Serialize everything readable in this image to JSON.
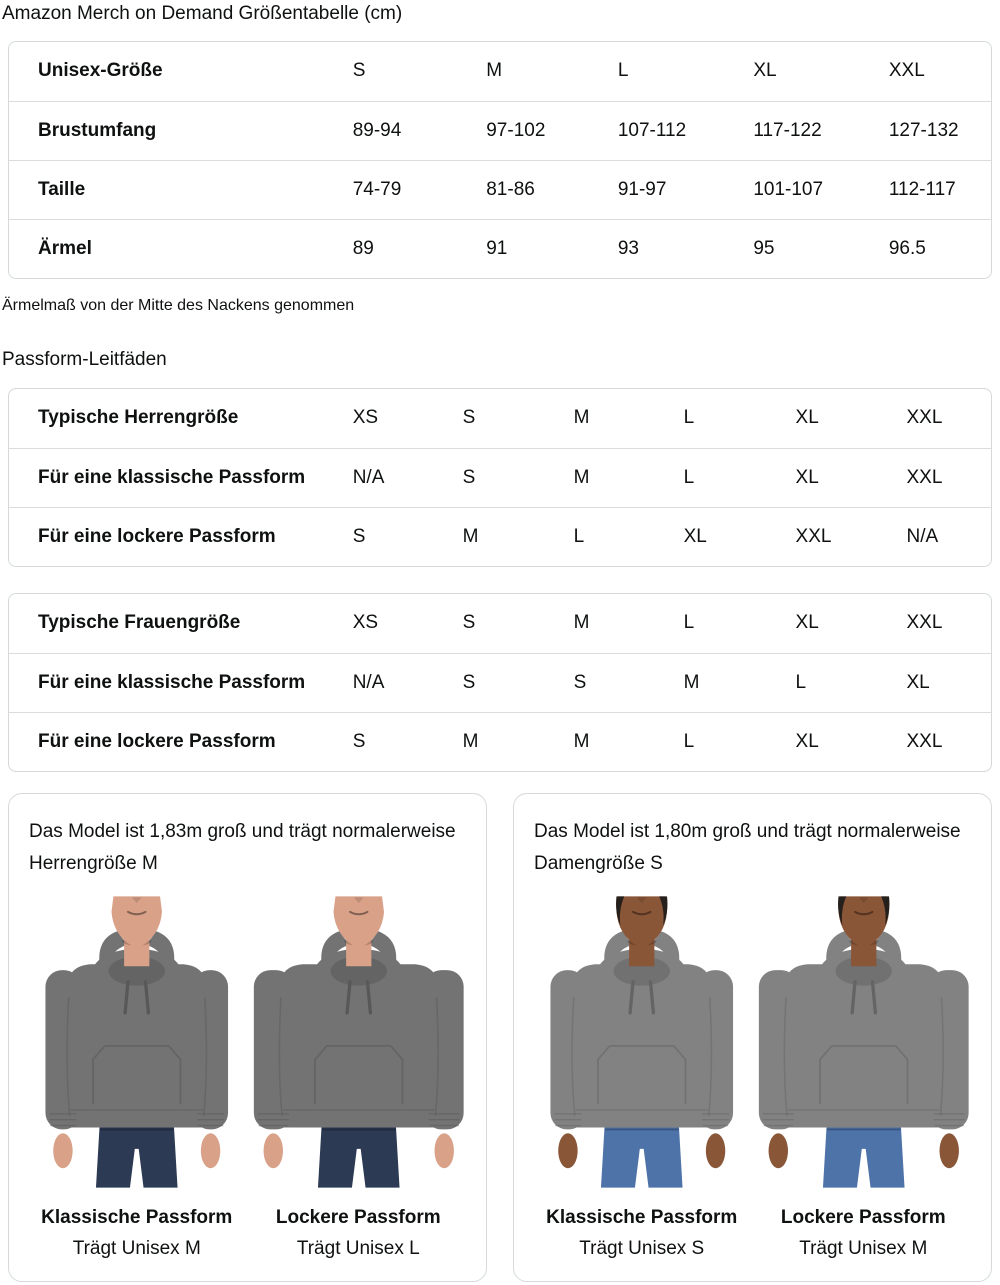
{
  "page": {
    "title": "Amazon Merch on Demand Größentabelle (cm)",
    "note": "Ärmelmaß von der Mitte des Nackens genommen",
    "fit_heading": "Passform-Leitfäden"
  },
  "ui_colors": {
    "text": "#0f1111",
    "table_border": "#d5d9d9",
    "row_divider": "#dcdcdc",
    "background": "#ffffff"
  },
  "size_table": {
    "rows": [
      {
        "label": "Unisex-Größe",
        "values": [
          "S",
          "M",
          "L",
          "XL",
          "XXL"
        ]
      },
      {
        "label": "Brustumfang",
        "values": [
          "89-94",
          "97-102",
          "107-112",
          "117-122",
          "127-132"
        ]
      },
      {
        "label": "Taille",
        "values": [
          "74-79",
          "81-86",
          "91-97",
          "101-107",
          "112-117"
        ]
      },
      {
        "label": "Ärmel",
        "values": [
          "89",
          "91",
          "93",
          "95",
          "96.5"
        ]
      }
    ]
  },
  "fit_tables": [
    {
      "rows": [
        {
          "label": "Typische Herrengröße",
          "values": [
            "XS",
            "S",
            "M",
            "L",
            "XL",
            "XXL"
          ]
        },
        {
          "label": "Für eine klassische Passform",
          "values": [
            "N/A",
            "S",
            "M",
            "L",
            "XL",
            "XXL"
          ]
        },
        {
          "label": "Für eine lockere Passform",
          "values": [
            "S",
            "M",
            "L",
            "XL",
            "XXL",
            "N/A"
          ]
        }
      ]
    },
    {
      "rows": [
        {
          "label": "Typische Frauengröße",
          "values": [
            "XS",
            "S",
            "M",
            "L",
            "XL",
            "XXL"
          ]
        },
        {
          "label": "Für eine klassische Passform",
          "values": [
            "N/A",
            "S",
            "S",
            "M",
            "L",
            "XL"
          ]
        },
        {
          "label": "Für eine lockere Passform",
          "values": [
            "S",
            "M",
            "M",
            "L",
            "XL",
            "XXL"
          ]
        }
      ]
    }
  ],
  "model_cards": [
    {
      "description": "Das Model ist 1,83m groß und trägt normalerweise Herrengröße M",
      "colors": {
        "skin": "#d9a188",
        "jeans": "#2c3a54",
        "hoodie": "#737373",
        "hoodie_dark": "#585858",
        "hair": ""
      },
      "figures": [
        {
          "fit_label": "Klassische Passform",
          "size_label": "Trägt Unisex M",
          "fit": "classic"
        },
        {
          "fit_label": "Lockere Passform",
          "size_label": "Trägt Unisex L",
          "fit": "loose"
        }
      ]
    },
    {
      "description": "Das Model ist 1,80m groß und trägt normalerweise Damengröße S",
      "colors": {
        "skin": "#8a5638",
        "jeans": "#4e73a8",
        "hoodie": "#828282",
        "hoodie_dark": "#646464",
        "hair": "#26201d"
      },
      "figures": [
        {
          "fit_label": "Klassische Passform",
          "size_label": "Trägt Unisex S",
          "fit": "classic"
        },
        {
          "fit_label": "Lockere Passform",
          "size_label": "Trägt Unisex M",
          "fit": "loose"
        }
      ]
    }
  ]
}
